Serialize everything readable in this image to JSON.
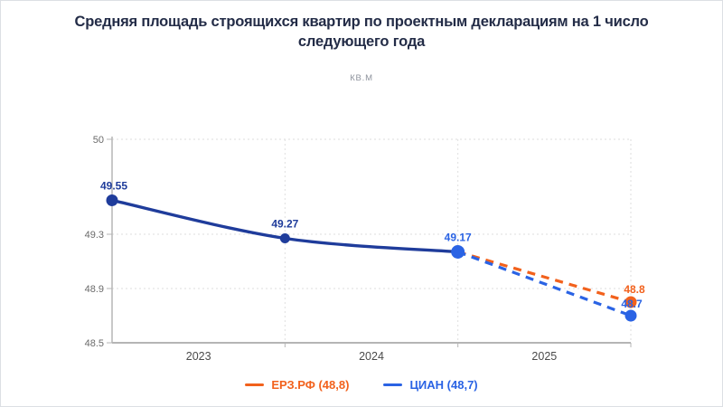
{
  "title": "Средняя площадь строящихся квартир по проектным декларациям на 1 число следующего года",
  "subtitle": "кв.м",
  "legend": {
    "items": [
      {
        "label": "ЕРЗ.РФ (48,8)",
        "color": "#F2611C"
      },
      {
        "label": "ЦИАН (48,7)",
        "color": "#2A63E4"
      }
    ]
  },
  "colors": {
    "history_line": "#1F3C9B",
    "cian_blue": "#2A63E4",
    "erz_orange": "#F2611C",
    "grid": "#DEDEDE",
    "axis": "#B5B5B5",
    "tick_text": "#6A6A6A",
    "year_text": "#4A4A4A",
    "title_text": "#232C47",
    "subtitle_text": "#8D929C"
  },
  "chart_data": {
    "type": "line",
    "title": "Средняя площадь строящихся квартир по проектным декларациям на 1 число следующего года",
    "ylabel": "кв.м",
    "xlabel": "",
    "grid": true,
    "legend_position": "bottom",
    "ylim": [
      48.5,
      50
    ],
    "y_ticks": [
      50,
      49.3,
      48.9,
      48.5
    ],
    "y_tick_labels": [
      "50",
      "49.3",
      "48.9",
      "48.5"
    ],
    "x_year_labels": [
      "2023",
      "2024",
      "2025"
    ],
    "historical": {
      "values": [
        49.55,
        49.27,
        49.17
      ],
      "labels": [
        "49.55",
        "49.27",
        "49.17"
      ]
    },
    "forecast_series": [
      {
        "name": "ЕРЗ.РФ (48,8)",
        "value": 48.8,
        "label": "48.8",
        "style": "dashed"
      },
      {
        "name": "ЦИАН (48,7)",
        "value": 48.7,
        "label": "48.7",
        "style": "dashed"
      }
    ]
  }
}
